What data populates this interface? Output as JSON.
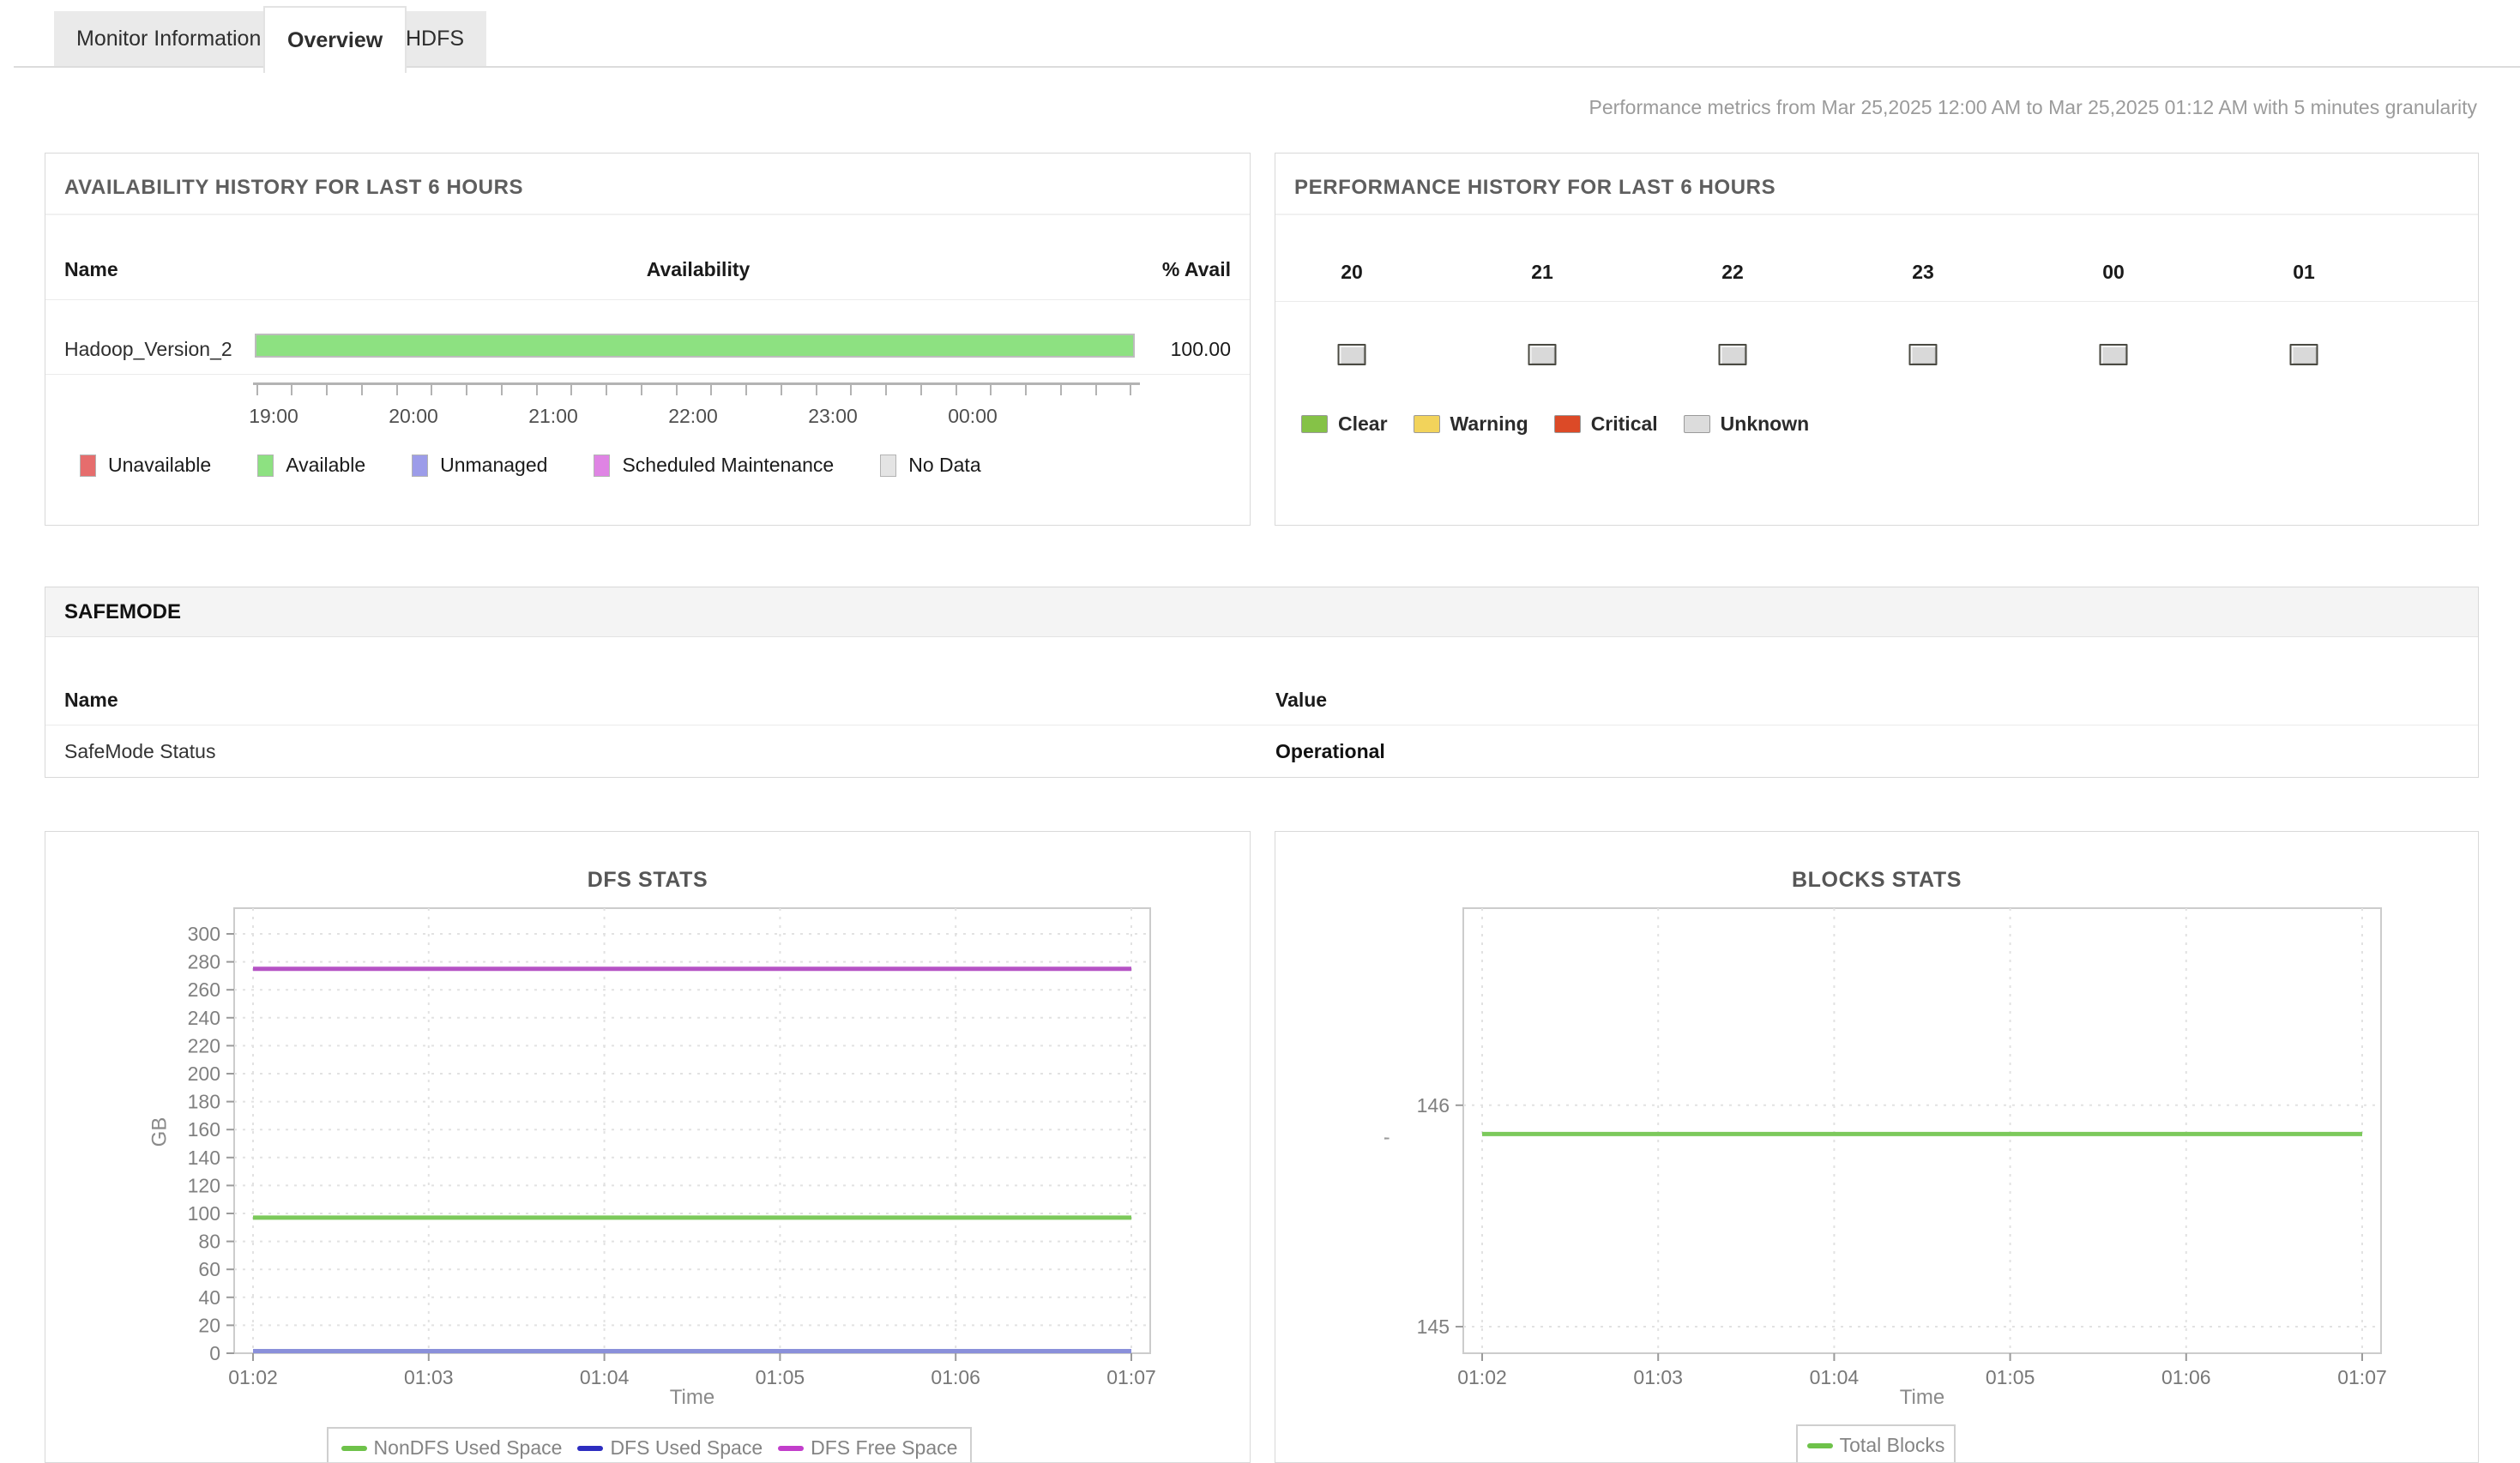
{
  "tabs": [
    {
      "label": "Monitor Information",
      "active": false
    },
    {
      "label": "Overview",
      "active": true
    },
    {
      "label": "HDFS",
      "active": false
    }
  ],
  "subtitle": "Performance metrics from Mar 25,2025 12:00 AM to Mar 25,2025 01:12 AM with 5 minutes granularity",
  "availability_panel": {
    "title": "AVAILABILITY HISTORY FOR LAST 6 HOURS",
    "columns": [
      "Name",
      "Availability",
      "% Avail"
    ],
    "rows": [
      {
        "name": "Hadoop_Version_2",
        "percent_avail": "100.00",
        "bar_color": "#8de181"
      }
    ],
    "axis_hour_labels": [
      "19:00",
      "20:00",
      "21:00",
      "22:00",
      "23:00",
      "00:00"
    ],
    "legend": [
      {
        "label": "Unavailable",
        "color": "#e66d6d"
      },
      {
        "label": "Available",
        "color": "#8de181"
      },
      {
        "label": "Unmanaged",
        "color": "#9c9ce9"
      },
      {
        "label": "Scheduled Maintenance",
        "color": "#df84e4"
      },
      {
        "label": "No Data",
        "color": "#e4e4e4"
      }
    ]
  },
  "performance_panel": {
    "title": "PERFORMANCE HISTORY FOR LAST 6 HOURS",
    "hours": [
      "20",
      "21",
      "22",
      "23",
      "00",
      "01"
    ],
    "status_box_color": "#d9d9d9",
    "legend": [
      {
        "label": "Clear",
        "color": "#85c247"
      },
      {
        "label": "Warning",
        "color": "#f2d35b"
      },
      {
        "label": "Critical",
        "color": "#dc4a27"
      },
      {
        "label": "Unknown",
        "color": "#dcdcdc"
      }
    ]
  },
  "safemode_panel": {
    "title": "SAFEMODE",
    "columns": [
      "Name",
      "Value"
    ],
    "rows": [
      {
        "name": "SafeMode Status",
        "value": "Operational"
      }
    ]
  },
  "chart_data": [
    {
      "type": "line",
      "title": "DFS STATS",
      "xlabel": "Time",
      "ylabel": "GB",
      "x": [
        "01:02",
        "01:03",
        "01:04",
        "01:05",
        "01:06",
        "01:07"
      ],
      "ylim": [
        0,
        318.4
      ],
      "yticks": [
        0,
        20,
        40,
        60,
        80,
        100,
        120,
        140,
        160,
        180,
        200,
        220,
        240,
        260,
        280,
        300
      ],
      "grid": true,
      "legend_position": "bottom",
      "series": [
        {
          "name": "NonDFS Used Space",
          "line_color": "#7cc95b",
          "legend_color": "#6ec24a",
          "values": [
            97,
            97,
            97,
            97,
            97,
            97
          ]
        },
        {
          "name": "DFS Used Space",
          "line_color": "#8a90da",
          "legend_color": "#2d2dc0",
          "values": [
            1.5,
            1.5,
            1.5,
            1.5,
            1.5,
            1.5
          ]
        },
        {
          "name": "DFS Free Space",
          "line_color": "#b553c5",
          "legend_color": "#c23ecb",
          "values": [
            275,
            275,
            275,
            275,
            275,
            275
          ]
        }
      ]
    },
    {
      "type": "line",
      "title": "BLOCKS STATS",
      "xlabel": "Time",
      "ylabel": "'",
      "x": [
        "01:02",
        "01:03",
        "01:04",
        "01:05",
        "01:06",
        "01:07"
      ],
      "ylim": [
        144.88,
        146.89
      ],
      "yticks": [
        145,
        146
      ],
      "grid": true,
      "legend_position": "bottom",
      "series": [
        {
          "name": "Total Blocks",
          "line_color": "#7cc95b",
          "legend_color": "#6ec24a",
          "values": [
            145.87,
            145.87,
            145.87,
            145.87,
            145.87,
            145.87
          ]
        }
      ]
    }
  ]
}
